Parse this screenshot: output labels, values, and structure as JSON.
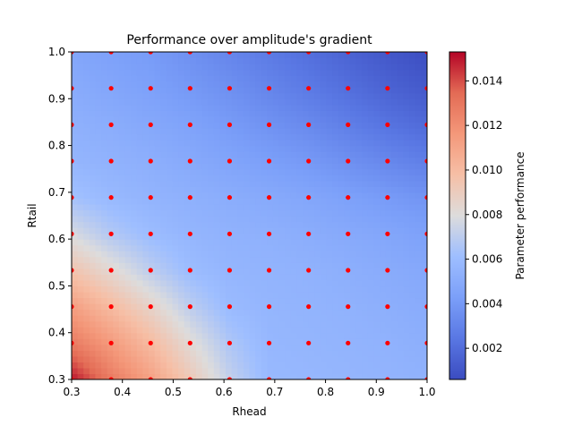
{
  "chart_data": {
    "type": "heatmap",
    "title": "Performance over amplitude's gradient",
    "xlabel": "Rhead",
    "ylabel": "Rtail",
    "xlim": [
      0.3,
      1.0
    ],
    "ylim": [
      0.3,
      1.0
    ],
    "x_ticks": [
      "0.3",
      "0.4",
      "0.5",
      "0.6",
      "0.7",
      "0.8",
      "0.9",
      "1.0"
    ],
    "y_ticks": [
      "0.3",
      "0.4",
      "0.5",
      "0.6",
      "0.7",
      "0.8",
      "0.9",
      "1.0"
    ],
    "colormap": "coolwarm",
    "colorbar": {
      "label": "Parameter performance",
      "range": [
        0.0006,
        0.0153
      ],
      "ticks": [
        "0.002",
        "0.004",
        "0.006",
        "0.008",
        "0.010",
        "0.012",
        "0.014"
      ]
    },
    "heatmap_grid": {
      "x": [
        0.3,
        0.3778,
        0.4556,
        0.5333,
        0.6111,
        0.6889,
        0.7667,
        0.8444,
        0.9222,
        1.0
      ],
      "y": [
        0.3,
        0.3778,
        0.4556,
        0.5333,
        0.6111,
        0.6889,
        0.7667,
        0.8444,
        0.9222,
        1.0
      ],
      "z": [
        [
          0.015,
          0.0128,
          0.0112,
          0.0092,
          0.0072,
          0.0058,
          0.0057,
          0.0056,
          0.0055,
          0.0054
        ],
        [
          0.0128,
          0.0115,
          0.01,
          0.0082,
          0.0066,
          0.0057,
          0.0056,
          0.0055,
          0.0054,
          0.0052
        ],
        [
          0.0113,
          0.01,
          0.0086,
          0.007,
          0.0059,
          0.0056,
          0.0055,
          0.0054,
          0.0052,
          0.005
        ],
        [
          0.0095,
          0.0083,
          0.007,
          0.006,
          0.0056,
          0.0055,
          0.0054,
          0.0052,
          0.005,
          0.0048
        ],
        [
          0.0078,
          0.0067,
          0.006,
          0.0056,
          0.0054,
          0.0053,
          0.0051,
          0.0049,
          0.0047,
          0.0044
        ],
        [
          0.0063,
          0.0058,
          0.0055,
          0.0053,
          0.0051,
          0.0049,
          0.0047,
          0.0044,
          0.0041,
          0.0038
        ],
        [
          0.0056,
          0.0054,
          0.0052,
          0.0049,
          0.0046,
          0.0043,
          0.004,
          0.0036,
          0.0032,
          0.0028
        ],
        [
          0.0053,
          0.0051,
          0.0048,
          0.0045,
          0.0041,
          0.0037,
          0.0033,
          0.0028,
          0.0023,
          0.0019
        ],
        [
          0.005,
          0.0047,
          0.0044,
          0.004,
          0.0036,
          0.0031,
          0.0026,
          0.0021,
          0.0016,
          0.0012
        ],
        [
          0.0047,
          0.0044,
          0.0041,
          0.0036,
          0.0031,
          0.0026,
          0.0021,
          0.0016,
          0.0011,
          0.0007
        ]
      ]
    },
    "sample_points": {
      "color": "#ff0000",
      "x": [
        0.3,
        0.3778,
        0.4556,
        0.5333,
        0.6111,
        0.6889,
        0.7667,
        0.8444,
        0.9222,
        1.0
      ],
      "y": [
        0.3,
        0.3778,
        0.4556,
        0.5333,
        0.6111,
        0.6889,
        0.7667,
        0.8444,
        0.9222,
        1.0
      ]
    }
  }
}
